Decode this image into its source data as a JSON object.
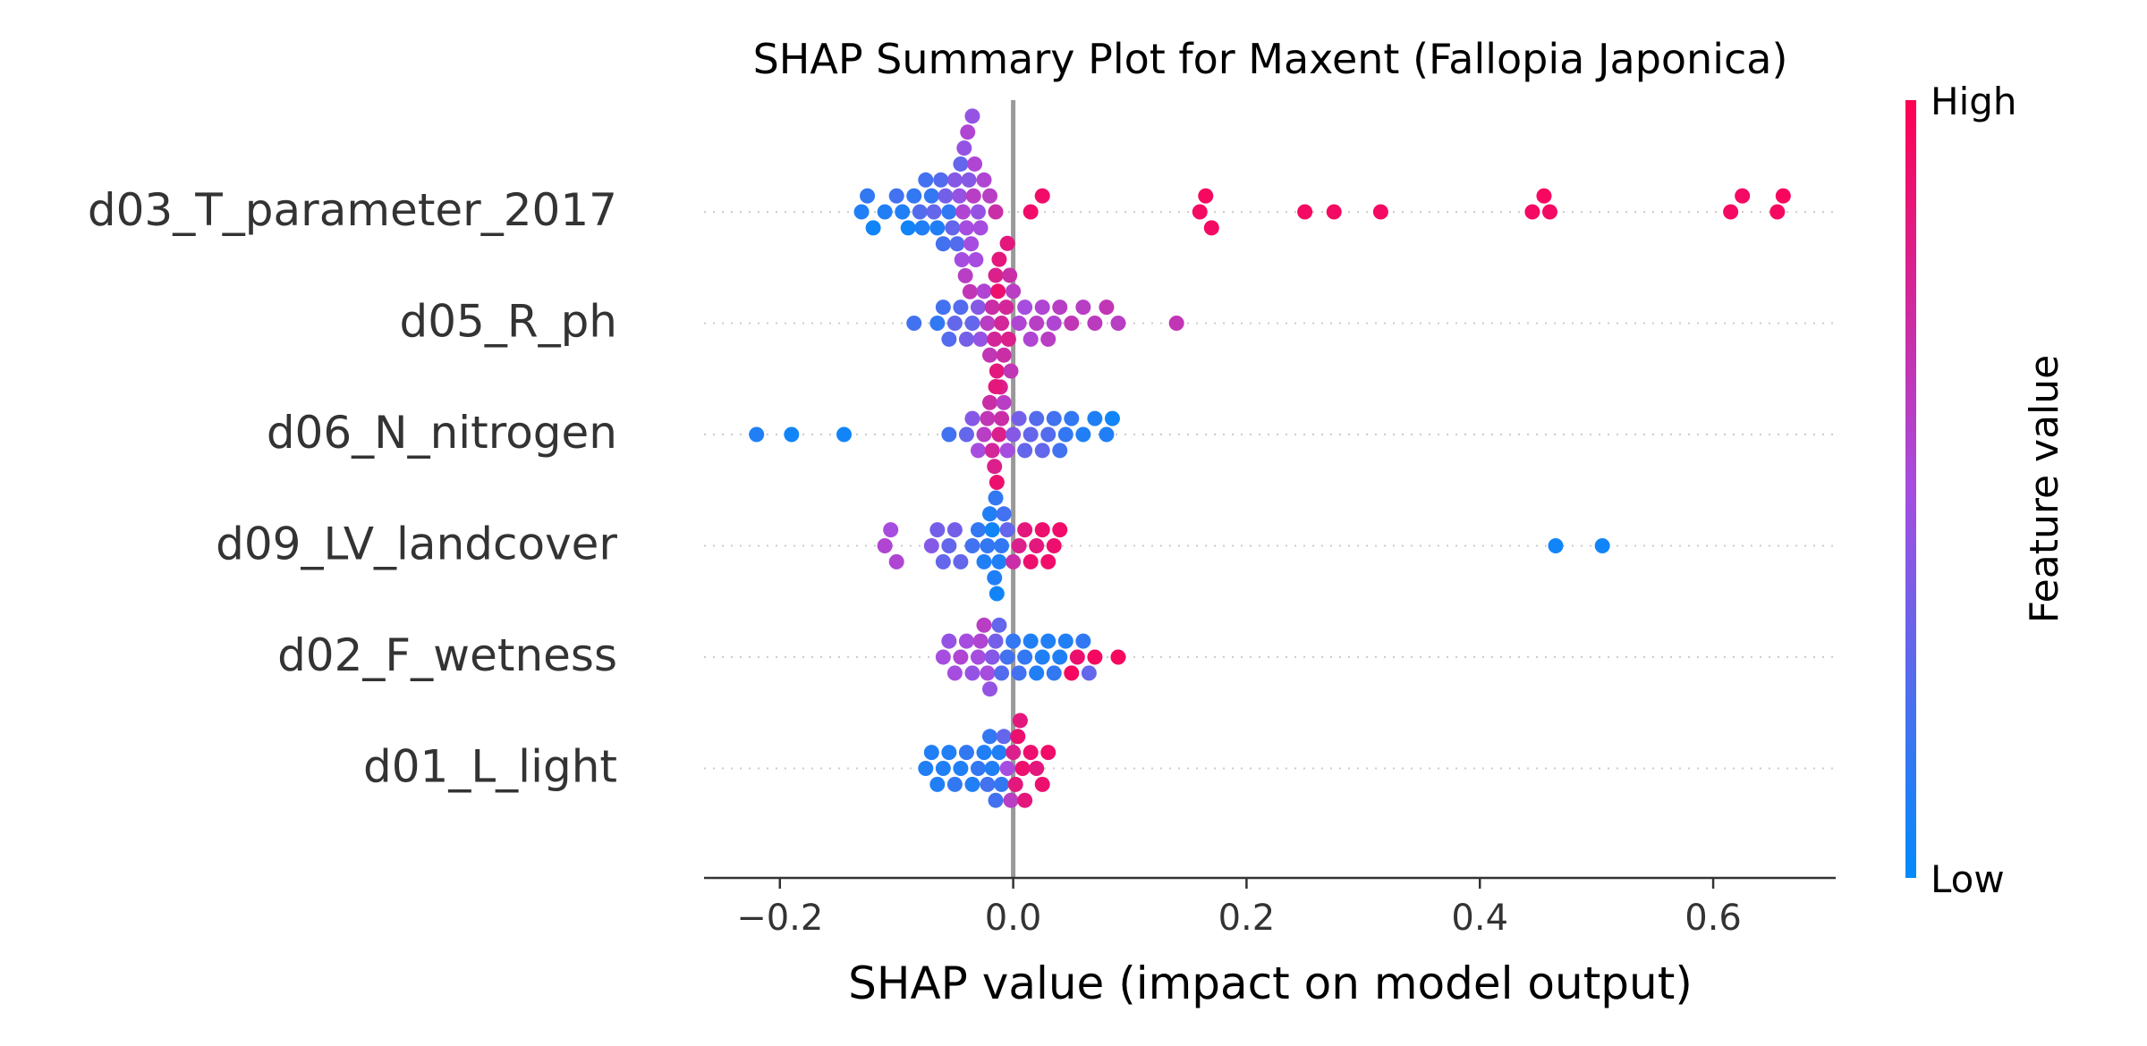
{
  "chart_data": {
    "type": "scatter",
    "subtype": "shap-beeswarm",
    "title": "SHAP Summary Plot for Maxent (Fallopia Japonica)",
    "xlabel": "SHAP value (impact on model output)",
    "xlim": [
      -0.265,
      0.705
    ],
    "xticks": [
      -0.2,
      0.0,
      0.2,
      0.4,
      0.6
    ],
    "xtick_labels": [
      "−0.2",
      "0.0",
      "0.2",
      "0.4",
      "0.6"
    ],
    "zero_line": 0.0,
    "grid": "dotted horizontal row guides",
    "colorbar": {
      "label": "Feature value",
      "high_label": "High",
      "low_label": "Low",
      "high_color": "#ff0052",
      "low_color": "#008bfb"
    },
    "features": [
      {
        "name": "d03_T_parameter_2017",
        "points": [
          [
            -0.13,
            0.1
          ],
          [
            -0.125,
            0.15
          ],
          [
            -0.12,
            0.05
          ],
          [
            -0.11,
            0.1
          ],
          [
            -0.1,
            0.2
          ],
          [
            -0.095,
            0.1
          ],
          [
            -0.09,
            0.05
          ],
          [
            -0.085,
            0.15
          ],
          [
            -0.08,
            0.25
          ],
          [
            -0.078,
            0.1
          ],
          [
            -0.075,
            0.2
          ],
          [
            -0.07,
            0.15
          ],
          [
            -0.068,
            0.3
          ],
          [
            -0.065,
            0.1
          ],
          [
            -0.062,
            0.25
          ],
          [
            -0.06,
            0.2
          ],
          [
            -0.058,
            0.35
          ],
          [
            -0.055,
            0.15
          ],
          [
            -0.052,
            0.3
          ],
          [
            -0.05,
            0.4
          ],
          [
            -0.048,
            0.25
          ],
          [
            -0.046,
            0.45
          ],
          [
            -0.045,
            0.3
          ],
          [
            -0.044,
            0.5
          ],
          [
            -0.043,
            0.55
          ],
          [
            -0.042,
            0.45
          ],
          [
            -0.041,
            0.6
          ],
          [
            -0.04,
            0.5
          ],
          [
            -0.039,
            0.55
          ],
          [
            -0.038,
            0.4
          ],
          [
            -0.037,
            0.65
          ],
          [
            -0.036,
            0.5
          ],
          [
            -0.035,
            0.45
          ],
          [
            -0.034,
            0.6
          ],
          [
            -0.033,
            0.55
          ],
          [
            -0.032,
            0.5
          ],
          [
            -0.03,
            0.45
          ],
          [
            -0.028,
            0.5
          ],
          [
            -0.025,
            0.55
          ],
          [
            -0.02,
            0.6
          ],
          [
            -0.015,
            0.7
          ],
          [
            0.015,
            0.92
          ],
          [
            0.025,
            0.92
          ],
          [
            0.16,
            0.94
          ],
          [
            0.165,
            0.95
          ],
          [
            0.17,
            0.94
          ],
          [
            0.25,
            0.94
          ],
          [
            0.275,
            0.94
          ],
          [
            0.315,
            0.94
          ],
          [
            0.445,
            0.94
          ],
          [
            0.455,
            0.95
          ],
          [
            0.46,
            0.94
          ],
          [
            0.615,
            0.94
          ],
          [
            0.625,
            0.94
          ],
          [
            0.655,
            0.95
          ],
          [
            0.66,
            0.96
          ]
        ]
      },
      {
        "name": "d05_R_ph",
        "points": [
          [
            -0.085,
            0.2
          ],
          [
            -0.065,
            0.15
          ],
          [
            -0.06,
            0.2
          ],
          [
            -0.055,
            0.25
          ],
          [
            -0.05,
            0.3
          ],
          [
            -0.045,
            0.25
          ],
          [
            -0.04,
            0.35
          ],
          [
            -0.035,
            0.3
          ],
          [
            -0.03,
            0.4
          ],
          [
            -0.028,
            0.45
          ],
          [
            -0.025,
            0.55
          ],
          [
            -0.022,
            0.6
          ],
          [
            -0.02,
            0.65
          ],
          [
            -0.018,
            0.7
          ],
          [
            -0.016,
            0.75
          ],
          [
            -0.015,
            0.8
          ],
          [
            -0.014,
            0.85
          ],
          [
            -0.013,
            0.9
          ],
          [
            -0.012,
            0.85
          ],
          [
            -0.011,
            0.8
          ],
          [
            -0.01,
            0.75
          ],
          [
            -0.008,
            0.7
          ],
          [
            -0.006,
            0.75
          ],
          [
            -0.005,
            0.85
          ],
          [
            -0.004,
            0.8
          ],
          [
            -0.003,
            0.7
          ],
          [
            -0.002,
            0.65
          ],
          [
            0.0,
            0.6
          ],
          [
            0.005,
            0.55
          ],
          [
            0.01,
            0.5
          ],
          [
            0.015,
            0.55
          ],
          [
            0.02,
            0.6
          ],
          [
            0.025,
            0.55
          ],
          [
            0.03,
            0.6
          ],
          [
            0.035,
            0.55
          ],
          [
            0.04,
            0.6
          ],
          [
            0.05,
            0.65
          ],
          [
            0.06,
            0.6
          ],
          [
            0.07,
            0.62
          ],
          [
            0.08,
            0.65
          ],
          [
            0.09,
            0.6
          ],
          [
            0.14,
            0.65
          ]
        ]
      },
      {
        "name": "d06_N_nitrogen",
        "points": [
          [
            -0.22,
            0.1
          ],
          [
            -0.19,
            0.05
          ],
          [
            -0.145,
            0.05
          ],
          [
            -0.055,
            0.2
          ],
          [
            -0.04,
            0.3
          ],
          [
            -0.035,
            0.4
          ],
          [
            -0.03,
            0.5
          ],
          [
            -0.025,
            0.6
          ],
          [
            -0.022,
            0.65
          ],
          [
            -0.02,
            0.7
          ],
          [
            -0.018,
            0.75
          ],
          [
            -0.016,
            0.8
          ],
          [
            -0.015,
            0.85
          ],
          [
            -0.014,
            0.9
          ],
          [
            -0.012,
            0.8
          ],
          [
            -0.01,
            0.7
          ],
          [
            -0.008,
            0.6
          ],
          [
            -0.005,
            0.5
          ],
          [
            0.0,
            0.4
          ],
          [
            0.005,
            0.35
          ],
          [
            0.01,
            0.3
          ],
          [
            0.015,
            0.3
          ],
          [
            0.02,
            0.25
          ],
          [
            0.025,
            0.3
          ],
          [
            0.03,
            0.25
          ],
          [
            0.035,
            0.2
          ],
          [
            0.04,
            0.2
          ],
          [
            0.045,
            0.15
          ],
          [
            0.05,
            0.15
          ],
          [
            0.06,
            0.1
          ],
          [
            0.07,
            0.1
          ],
          [
            0.08,
            0.1
          ],
          [
            0.085,
            0.05
          ]
        ]
      },
      {
        "name": "d09_LV_landcover",
        "points": [
          [
            -0.11,
            0.55
          ],
          [
            -0.105,
            0.5
          ],
          [
            -0.1,
            0.55
          ],
          [
            -0.07,
            0.4
          ],
          [
            -0.065,
            0.35
          ],
          [
            -0.06,
            0.3
          ],
          [
            -0.055,
            0.3
          ],
          [
            -0.05,
            0.35
          ],
          [
            -0.045,
            0.3
          ],
          [
            -0.035,
            0.2
          ],
          [
            -0.03,
            0.15
          ],
          [
            -0.025,
            0.1
          ],
          [
            -0.022,
            0.15
          ],
          [
            -0.02,
            0.1
          ],
          [
            -0.018,
            0.05
          ],
          [
            -0.016,
            0.1
          ],
          [
            -0.015,
            0.15
          ],
          [
            -0.014,
            0.05
          ],
          [
            -0.012,
            0.1
          ],
          [
            -0.01,
            0.15
          ],
          [
            -0.008,
            0.2
          ],
          [
            -0.005,
            0.3
          ],
          [
            0.0,
            0.7
          ],
          [
            0.005,
            0.8
          ],
          [
            0.01,
            0.85
          ],
          [
            0.015,
            0.9
          ],
          [
            0.02,
            0.85
          ],
          [
            0.025,
            0.9
          ],
          [
            0.03,
            0.92
          ],
          [
            0.035,
            0.9
          ],
          [
            0.04,
            0.92
          ],
          [
            0.465,
            0.05
          ],
          [
            0.505,
            0.05
          ]
        ]
      },
      {
        "name": "d02_F_wetness",
        "points": [
          [
            -0.06,
            0.5
          ],
          [
            -0.055,
            0.45
          ],
          [
            -0.05,
            0.5
          ],
          [
            -0.045,
            0.55
          ],
          [
            -0.04,
            0.5
          ],
          [
            -0.035,
            0.45
          ],
          [
            -0.03,
            0.5
          ],
          [
            -0.028,
            0.55
          ],
          [
            -0.025,
            0.6
          ],
          [
            -0.022,
            0.5
          ],
          [
            -0.02,
            0.45
          ],
          [
            -0.018,
            0.4
          ],
          [
            -0.015,
            0.35
          ],
          [
            -0.012,
            0.3
          ],
          [
            -0.01,
            0.25
          ],
          [
            -0.005,
            0.2
          ],
          [
            0.0,
            0.15
          ],
          [
            0.005,
            0.2
          ],
          [
            0.01,
            0.15
          ],
          [
            0.015,
            0.1
          ],
          [
            0.02,
            0.1
          ],
          [
            0.025,
            0.1
          ],
          [
            0.03,
            0.1
          ],
          [
            0.035,
            0.15
          ],
          [
            0.04,
            0.1
          ],
          [
            0.045,
            0.1
          ],
          [
            0.05,
            0.95
          ],
          [
            0.055,
            0.9
          ],
          [
            0.06,
            0.15
          ],
          [
            0.065,
            0.3
          ],
          [
            0.07,
            0.95
          ],
          [
            0.09,
            0.95
          ]
        ]
      },
      {
        "name": "d01_L_light",
        "points": [
          [
            -0.075,
            0.1
          ],
          [
            -0.07,
            0.1
          ],
          [
            -0.065,
            0.1
          ],
          [
            -0.06,
            0.1
          ],
          [
            -0.055,
            0.1
          ],
          [
            -0.05,
            0.15
          ],
          [
            -0.045,
            0.1
          ],
          [
            -0.04,
            0.15
          ],
          [
            -0.035,
            0.1
          ],
          [
            -0.03,
            0.15
          ],
          [
            -0.025,
            0.1
          ],
          [
            -0.022,
            0.2
          ],
          [
            -0.02,
            0.15
          ],
          [
            -0.018,
            0.1
          ],
          [
            -0.015,
            0.2
          ],
          [
            -0.012,
            0.1
          ],
          [
            -0.01,
            0.15
          ],
          [
            -0.008,
            0.3
          ],
          [
            -0.005,
            0.5
          ],
          [
            -0.002,
            0.6
          ],
          [
            0.0,
            0.8
          ],
          [
            0.002,
            0.85
          ],
          [
            0.004,
            0.9
          ],
          [
            0.006,
            0.85
          ],
          [
            0.008,
            0.9
          ],
          [
            0.01,
            0.85
          ],
          [
            0.015,
            0.9
          ],
          [
            0.02,
            0.85
          ],
          [
            0.025,
            0.9
          ],
          [
            0.03,
            0.92
          ]
        ]
      }
    ]
  }
}
